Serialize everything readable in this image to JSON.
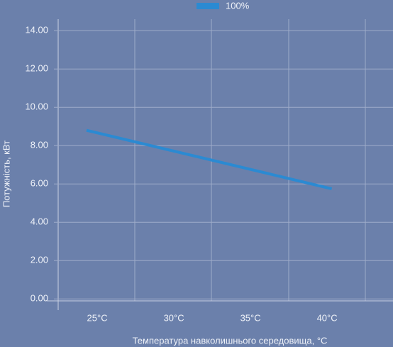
{
  "chart_data": {
    "type": "line",
    "legend_title": null,
    "x_label": "Температура навколишнього середовища, °C",
    "y_label": "Потужність, кВт",
    "x": [
      24.3,
      40.3
    ],
    "series": [
      {
        "name": "100%",
        "color": "#2b8ad2",
        "values": [
          8.8,
          5.75
        ]
      }
    ],
    "xlim": [
      22.45,
      44.3
    ],
    "xticks": [
      {
        "value": 25,
        "label": "25°C"
      },
      {
        "value": 30,
        "label": "30°C"
      },
      {
        "value": 35,
        "label": "35°C"
      },
      {
        "value": 40,
        "label": "40°C"
      }
    ],
    "ylim": [
      -0.1,
      14.6
    ],
    "yticks": [
      {
        "value": 0,
        "label": "0.00"
      },
      {
        "value": 2,
        "label": "2.00"
      },
      {
        "value": 4,
        "label": "4.00"
      },
      {
        "value": 6,
        "label": "6.00"
      },
      {
        "value": 8,
        "label": "8.00"
      },
      {
        "value": 10,
        "label": "10.00"
      },
      {
        "value": 12,
        "label": "12.00"
      },
      {
        "value": 14,
        "label": "14.00"
      }
    ],
    "grid": true
  }
}
